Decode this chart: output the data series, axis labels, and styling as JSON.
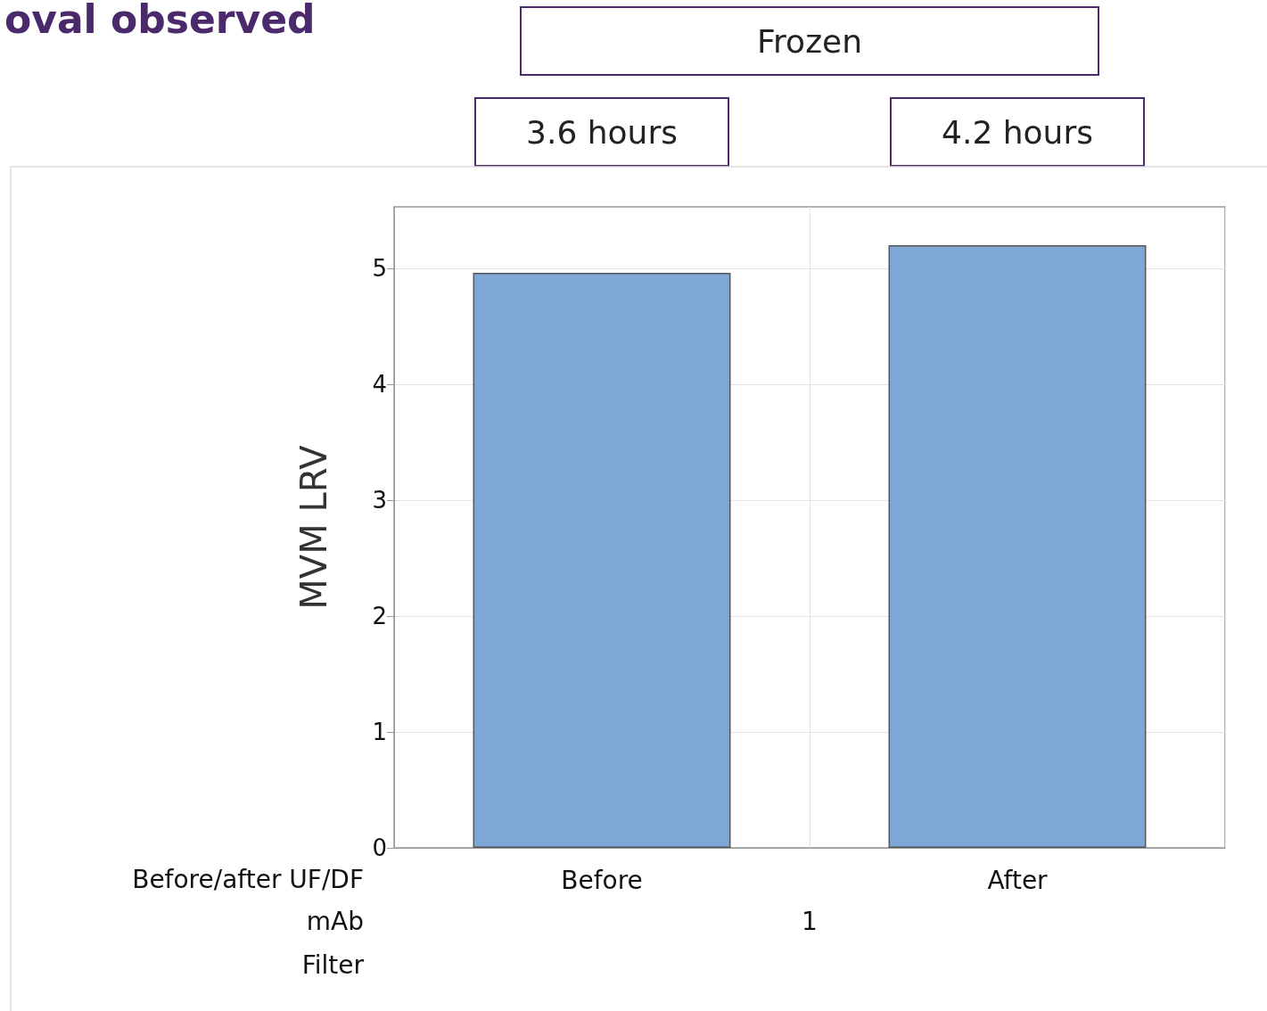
{
  "chart_data": {
    "type": "bar",
    "title": "oval observed",
    "ylabel": "MVM LRV",
    "xlabel": "Before/after UF/DF",
    "categories": [
      "Before",
      "After"
    ],
    "values": [
      4.96,
      5.2
    ],
    "color": "#7ea7d8",
    "ylim": [
      0,
      5.53
    ],
    "yticks": [
      0,
      1,
      2,
      3,
      4,
      5
    ],
    "grid": true,
    "annotations": [
      "Frozen",
      "3.6 hours",
      "4.2 hours",
      "mAb",
      "1",
      "Filter"
    ]
  }
}
